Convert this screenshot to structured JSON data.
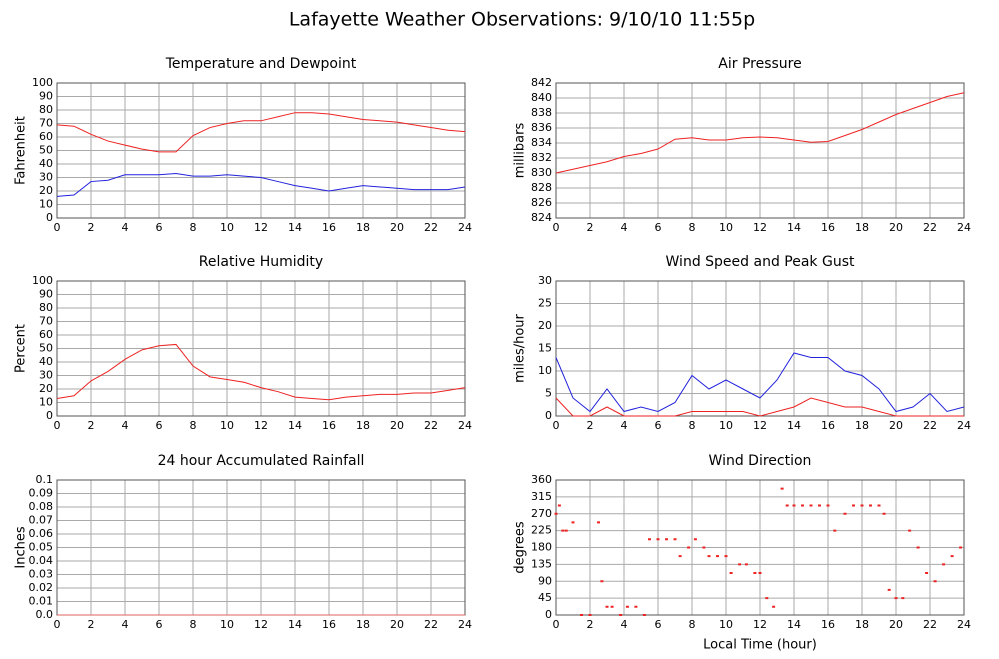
{
  "title": "Lafayette Weather Observations: 9/10/10 11:55p",
  "chart_data": [
    {
      "type": "line",
      "title": "Temperature and Dewpoint",
      "ylabel": "Fahrenheit",
      "x": [
        0,
        1,
        2,
        3,
        4,
        5,
        6,
        7,
        8,
        9,
        10,
        11,
        12,
        13,
        14,
        15,
        16,
        17,
        18,
        19,
        20,
        21,
        22,
        23,
        24
      ],
      "series": [
        {
          "color": "#ee2222",
          "values": [
            69,
            68,
            62,
            57,
            54,
            51,
            49,
            49,
            61,
            67,
            70,
            72,
            72,
            75,
            78,
            78,
            77,
            75,
            73,
            72,
            71,
            69,
            67,
            65,
            64
          ]
        },
        {
          "color": "#2222dd",
          "values": [
            16,
            17,
            27,
            28,
            32,
            32,
            32,
            33,
            31,
            31,
            32,
            31,
            30,
            27,
            24,
            22,
            20,
            22,
            24,
            23,
            22,
            21,
            21,
            21,
            23
          ]
        }
      ],
      "xlim": [
        0,
        24
      ],
      "xticks": [
        0,
        2,
        4,
        6,
        8,
        10,
        12,
        14,
        16,
        18,
        20,
        22,
        24
      ],
      "ylim": [
        0,
        100
      ],
      "yticks": [
        0,
        10,
        20,
        30,
        40,
        50,
        60,
        70,
        80,
        90,
        100
      ],
      "grid": true
    },
    {
      "type": "line",
      "title": "Air Pressure",
      "ylabel": "millibars",
      "x": [
        0,
        1,
        2,
        3,
        4,
        5,
        6,
        7,
        8,
        9,
        10,
        11,
        12,
        13,
        14,
        15,
        16,
        17,
        18,
        19,
        20,
        21,
        22,
        23,
        24
      ],
      "series": [
        {
          "color": "#ee2222",
          "values": [
            830,
            830.5,
            831,
            831.5,
            832.2,
            832.6,
            833.2,
            834.5,
            834.7,
            834.4,
            834.4,
            834.7,
            834.8,
            834.7,
            834.4,
            834.1,
            834.2,
            835,
            835.8,
            836.8,
            837.8,
            838.6,
            839.4,
            840.2,
            840.7
          ]
        }
      ],
      "xlim": [
        0,
        24
      ],
      "xticks": [
        0,
        2,
        4,
        6,
        8,
        10,
        12,
        14,
        16,
        18,
        20,
        22,
        24
      ],
      "ylim": [
        824,
        842
      ],
      "yticks": [
        824,
        826,
        828,
        830,
        832,
        834,
        836,
        838,
        840,
        842
      ],
      "grid": true
    },
    {
      "type": "line",
      "title": "Relative Humidity",
      "ylabel": "Percent",
      "x": [
        0,
        1,
        2,
        3,
        4,
        5,
        6,
        7,
        8,
        9,
        10,
        11,
        12,
        13,
        14,
        15,
        16,
        17,
        18,
        19,
        20,
        21,
        22,
        23,
        24
      ],
      "series": [
        {
          "color": "#ee2222",
          "values": [
            13,
            15,
            26,
            33,
            42,
            49,
            52,
            53,
            37,
            29,
            27,
            25,
            21,
            18,
            14,
            13,
            12,
            14,
            15,
            16,
            16,
            17,
            17,
            19,
            21
          ]
        }
      ],
      "xlim": [
        0,
        24
      ],
      "xticks": [
        0,
        2,
        4,
        6,
        8,
        10,
        12,
        14,
        16,
        18,
        20,
        22,
        24
      ],
      "ylim": [
        0,
        100
      ],
      "yticks": [
        0,
        10,
        20,
        30,
        40,
        50,
        60,
        70,
        80,
        90,
        100
      ],
      "grid": true
    },
    {
      "type": "line",
      "title": "Wind Speed and Peak Gust",
      "ylabel": "miles/hour",
      "x": [
        0,
        1,
        2,
        3,
        4,
        5,
        6,
        7,
        8,
        9,
        10,
        11,
        12,
        13,
        14,
        15,
        16,
        17,
        18,
        19,
        20,
        21,
        22,
        23,
        24
      ],
      "series": [
        {
          "color": "#2222dd",
          "values": [
            13,
            4,
            1,
            6,
            1,
            2,
            1,
            3,
            9,
            6,
            8,
            6,
            4,
            8,
            14,
            13,
            13,
            10,
            9,
            6,
            1,
            2,
            5,
            1,
            2
          ]
        },
        {
          "color": "#ee2222",
          "values": [
            4,
            0,
            0,
            2,
            0,
            0,
            0,
            0,
            1,
            1,
            1,
            1,
            0,
            1,
            2,
            4,
            3,
            2,
            2,
            1,
            0,
            0,
            0,
            0,
            0
          ]
        }
      ],
      "xlim": [
        0,
        24
      ],
      "xticks": [
        0,
        2,
        4,
        6,
        8,
        10,
        12,
        14,
        16,
        18,
        20,
        22,
        24
      ],
      "ylim": [
        0,
        30
      ],
      "yticks": [
        0,
        5,
        10,
        15,
        20,
        25,
        30
      ],
      "grid": true
    },
    {
      "type": "line",
      "title": "24 hour Accumulated Rainfall",
      "ylabel": "Inches",
      "x": [
        0,
        1,
        2,
        3,
        4,
        5,
        6,
        7,
        8,
        9,
        10,
        11,
        12,
        13,
        14,
        15,
        16,
        17,
        18,
        19,
        20,
        21,
        22,
        23,
        24
      ],
      "series": [
        {
          "color": "#e06060",
          "values": [
            0,
            0,
            0,
            0,
            0,
            0,
            0,
            0,
            0,
            0,
            0,
            0,
            0,
            0,
            0,
            0,
            0,
            0,
            0,
            0,
            0,
            0,
            0,
            0,
            0
          ]
        }
      ],
      "xlim": [
        0,
        24
      ],
      "xticks": [
        0,
        2,
        4,
        6,
        8,
        10,
        12,
        14,
        16,
        18,
        20,
        22,
        24
      ],
      "ylim": [
        0,
        0.1
      ],
      "yticks": [
        {
          "value": 0,
          "label": "0.0"
        },
        0.01,
        0.02,
        0.03,
        0.04,
        0.05,
        0.06,
        0.07,
        0.08,
        0.09,
        0.1
      ],
      "grid": true
    },
    {
      "type": "scatter",
      "title": "Wind Direction",
      "ylabel": "degrees",
      "xlabel": "Local Time (hour)",
      "x": [
        0,
        0.2,
        0.4,
        0.6,
        1,
        1.5,
        2,
        2.5,
        2.7,
        3,
        3.3,
        3.8,
        4.2,
        4.7,
        5.2,
        5.5,
        6,
        6.5,
        7,
        7.3,
        7.8,
        8.2,
        8.7,
        9,
        9.5,
        10,
        10.3,
        10.8,
        11.2,
        11.7,
        12,
        12.4,
        12.8,
        13.3,
        13.6,
        14,
        14.5,
        15,
        15.5,
        16,
        16.4,
        17,
        17.5,
        18,
        18.5,
        19,
        19.3,
        19.6,
        20,
        20.4,
        20.8,
        21.3,
        21.8,
        22.3,
        22.8,
        23.3,
        23.8
      ],
      "series": [
        {
          "color": "#ee2222",
          "values": [
            270,
            292,
            225,
            225,
            247,
            0,
            0,
            247,
            90,
            22,
            22,
            0,
            22,
            22,
            0,
            202,
            202,
            202,
            202,
            157,
            180,
            202,
            180,
            157,
            157,
            157,
            112,
            135,
            135,
            112,
            112,
            45,
            22,
            337,
            292,
            292,
            292,
            292,
            292,
            292,
            225,
            270,
            292,
            292,
            292,
            292,
            270,
            67,
            45,
            45,
            225,
            180,
            112,
            90,
            135,
            157,
            180
          ]
        }
      ],
      "xlim": [
        0,
        24
      ],
      "xticks": [
        0,
        2,
        4,
        6,
        8,
        10,
        12,
        14,
        16,
        18,
        20,
        22,
        24
      ],
      "ylim": [
        0,
        360
      ],
      "yticks": [
        0,
        45,
        90,
        135,
        180,
        225,
        270,
        315,
        360
      ],
      "grid": true
    }
  ]
}
